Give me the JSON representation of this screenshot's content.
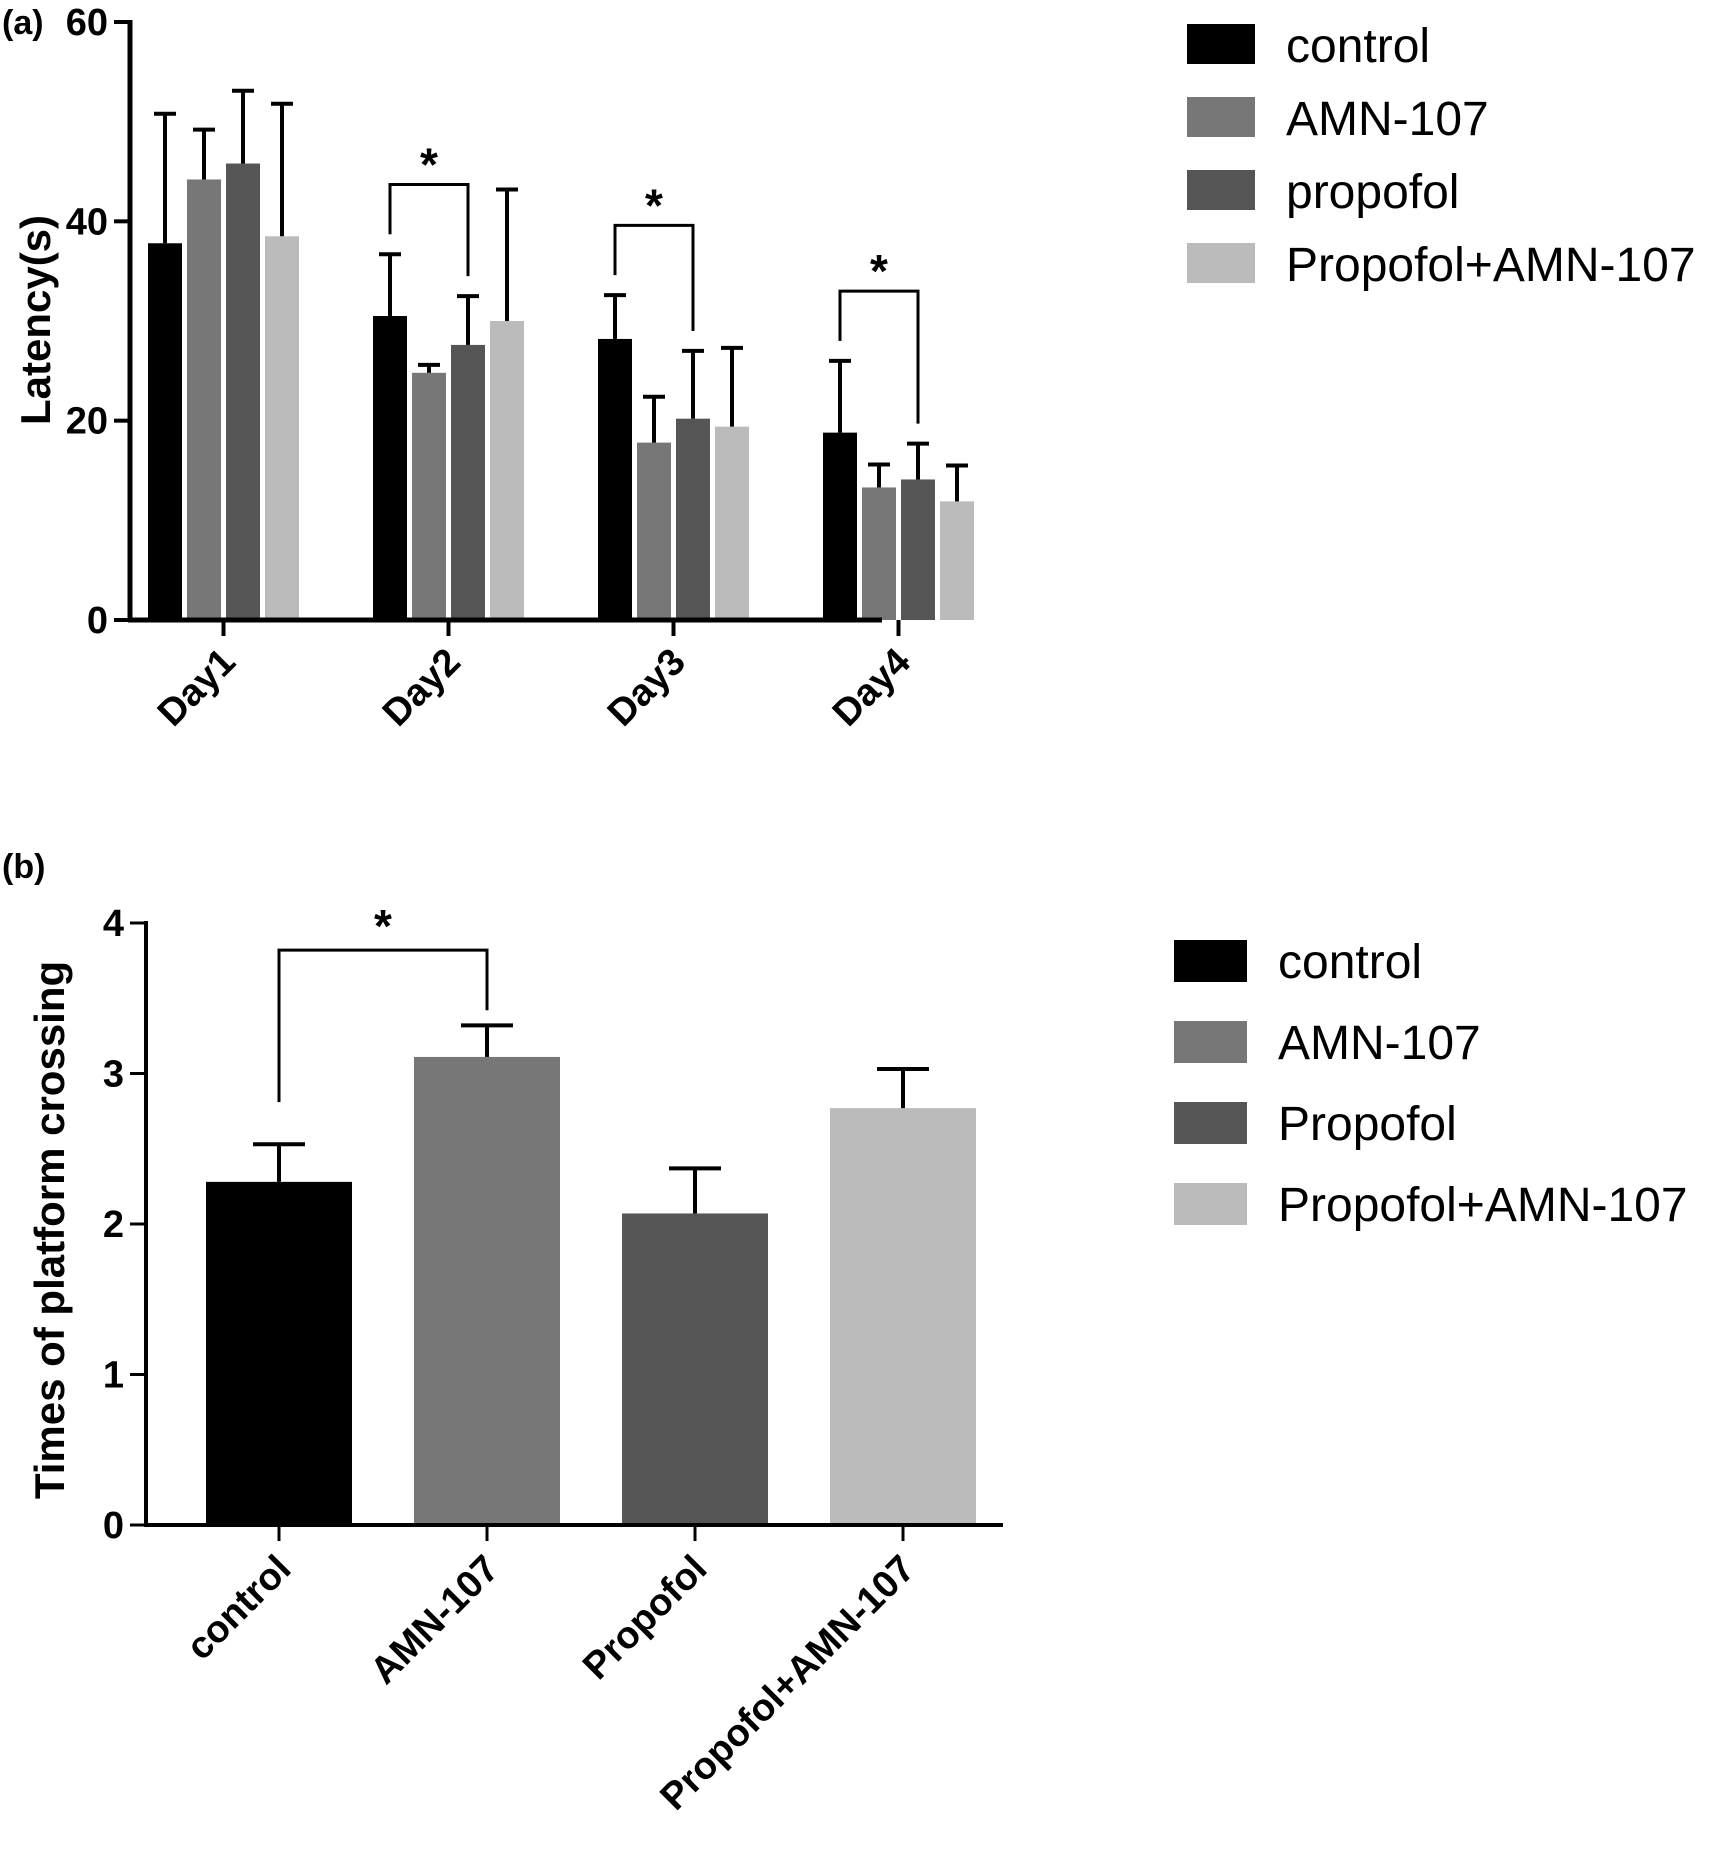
{
  "colors": {
    "control": "#000000",
    "amn107": "#777777",
    "propofol": "#555555",
    "combo": "#bbbbbb",
    "axis": "#000000"
  },
  "chart_data": [
    {
      "panel_label": "(a)",
      "type": "bar",
      "ylabel": "Latency(s)",
      "xlabel": "",
      "ylim": [
        0,
        60
      ],
      "yticks": [
        0,
        20,
        40,
        60
      ],
      "categories": [
        "Day1",
        "Day2",
        "Day3",
        "Day4"
      ],
      "series": [
        {
          "name": "control",
          "color": "#000000",
          "values": [
            37.8,
            30.5,
            28.2,
            18.8
          ],
          "errors": [
            13.0,
            6.2,
            4.4,
            7.2
          ]
        },
        {
          "name": "AMN-107",
          "color": "#777777",
          "values": [
            44.2,
            24.8,
            17.8,
            13.3
          ],
          "errors": [
            5.0,
            0.8,
            4.6,
            2.3
          ]
        },
        {
          "name": "propofol",
          "color": "#555555",
          "values": [
            45.8,
            27.6,
            20.2,
            14.1
          ],
          "errors": [
            7.3,
            4.9,
            6.8,
            3.6
          ]
        },
        {
          "name": "Propofol+AMN-107",
          "color": "#bbbbbb",
          "values": [
            38.5,
            30.0,
            19.4,
            11.9
          ],
          "errors": [
            13.3,
            13.2,
            7.9,
            3.6
          ]
        }
      ],
      "legend": [
        "control",
        "AMN-107",
        "propofol",
        "Propofol+AMN-107"
      ],
      "legend_position": "right",
      "grid": false,
      "significance": [
        {
          "category": "Day2",
          "from_series": 0,
          "to_series": 2,
          "label": "*"
        },
        {
          "category": "Day3",
          "from_series": 0,
          "to_series": 2,
          "label": "*"
        },
        {
          "category": "Day4",
          "from_series": 0,
          "to_series": 2,
          "label": "*"
        }
      ]
    },
    {
      "panel_label": "(b)",
      "type": "bar",
      "ylabel": "Times of platform crossing",
      "xlabel": "",
      "ylim": [
        0,
        4
      ],
      "yticks": [
        0,
        1,
        2,
        3,
        4
      ],
      "categories": [
        "control",
        "AMN-107",
        "Propofol",
        "Propofol+AMN-107"
      ],
      "values": [
        2.28,
        3.11,
        2.07,
        2.77
      ],
      "errors": [
        0.25,
        0.21,
        0.3,
        0.26
      ],
      "colors": [
        "#000000",
        "#777777",
        "#555555",
        "#bbbbbb"
      ],
      "legend": [
        "control",
        "AMN-107",
        "Propofol",
        "Propofol+AMN-107"
      ],
      "legend_position": "right",
      "grid": false,
      "significance": [
        {
          "from_index": 0,
          "to_index": 1,
          "label": "*"
        }
      ]
    }
  ]
}
